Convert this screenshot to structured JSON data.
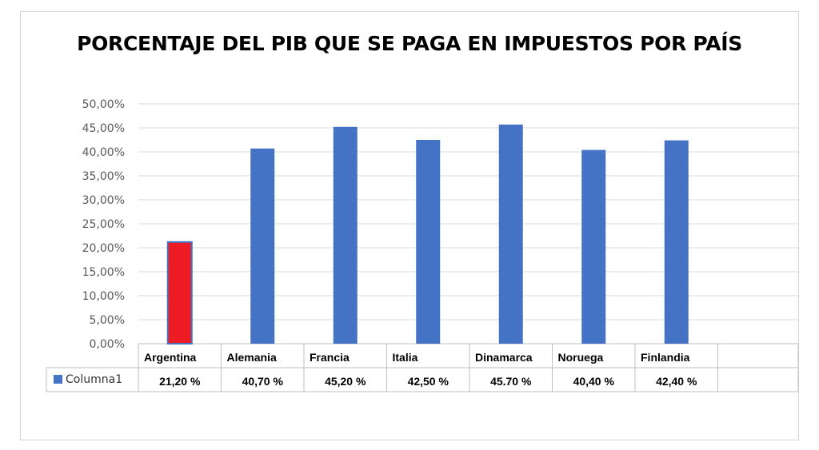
{
  "chart_data": {
    "type": "bar",
    "title": "PORCENTAJE DEL PIB QUE SE PAGA EN IMPUESTOS POR PAÍS",
    "categories": [
      "Argentina",
      "Alemania",
      "Francia",
      "Italia",
      "Dinamarca",
      "Noruega",
      "Finlandia"
    ],
    "series": [
      {
        "name": "Columna1",
        "values": [
          21.2,
          40.7,
          45.2,
          42.5,
          45.7,
          40.4,
          42.4
        ],
        "labels": [
          "21,20 %",
          "40,70 %",
          "45,20 %",
          "42,50 %",
          "45.70 %",
          "40,40 %",
          "42,40 %"
        ]
      }
    ],
    "yticks": [
      "0,00%",
      "5,00%",
      "10,00%",
      "15,00%",
      "20,00%",
      "25,00%",
      "30,00%",
      "35,00%",
      "40,00%",
      "45,00%",
      "50,00%"
    ],
    "ylim": [
      0,
      50
    ],
    "grid": true,
    "legend": "data-table",
    "colors": {
      "default": "#4472C4",
      "highlight": "#ED1C24",
      "highlight_border": "#4472C4"
    },
    "highlight_index": 0
  }
}
